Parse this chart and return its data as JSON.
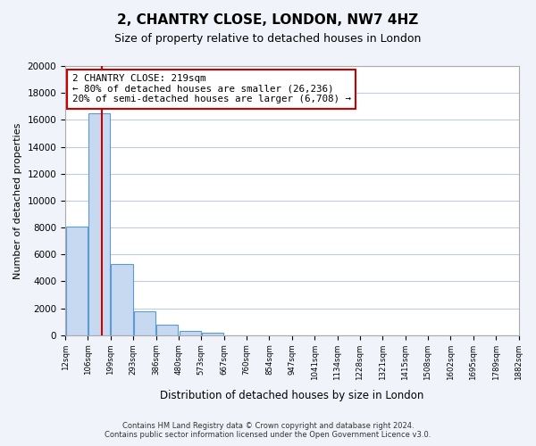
{
  "title": "2, CHANTRY CLOSE, LONDON, NW7 4HZ",
  "subtitle": "Size of property relative to detached houses in London",
  "bar_values": [
    8100,
    16500,
    5300,
    1800,
    800,
    300,
    200,
    0,
    0,
    0,
    0,
    0,
    0,
    0,
    0,
    0,
    0,
    0,
    0,
    0
  ],
  "bin_labels": [
    "12sqm",
    "106sqm",
    "199sqm",
    "293sqm",
    "386sqm",
    "480sqm",
    "573sqm",
    "667sqm",
    "760sqm",
    "854sqm",
    "947sqm",
    "1041sqm",
    "1134sqm",
    "1228sqm",
    "1321sqm",
    "1415sqm",
    "1508sqm",
    "1602sqm",
    "1695sqm",
    "1789sqm",
    "1882sqm"
  ],
  "bar_color": "#c6d9f1",
  "bar_edge_color": "#5b9bd5",
  "property_line_value": 219,
  "property_line_bin_index": 1.13,
  "property_line_color": "#cc0000",
  "annotation_title": "2 CHANTRY CLOSE: 219sqm",
  "annotation_line1": "← 80% of detached houses are smaller (26,236)",
  "annotation_line2": "20% of semi-detached houses are larger (6,708) →",
  "annotation_box_color": "#ffffff",
  "annotation_box_edge": "#cc0000",
  "xlabel": "Distribution of detached houses by size in London",
  "ylabel": "Number of detached properties",
  "ylim": [
    0,
    20000
  ],
  "yticks": [
    0,
    2000,
    4000,
    6000,
    8000,
    10000,
    12000,
    14000,
    16000,
    18000,
    20000
  ],
  "footer_line1": "Contains HM Land Registry data © Crown copyright and database right 2024.",
  "footer_line2": "Contains public sector information licensed under the Open Government Licence v3.0.",
  "bg_color": "#f0f4fa",
  "plot_bg_color": "#ffffff",
  "grid_color": "#c0cce0"
}
